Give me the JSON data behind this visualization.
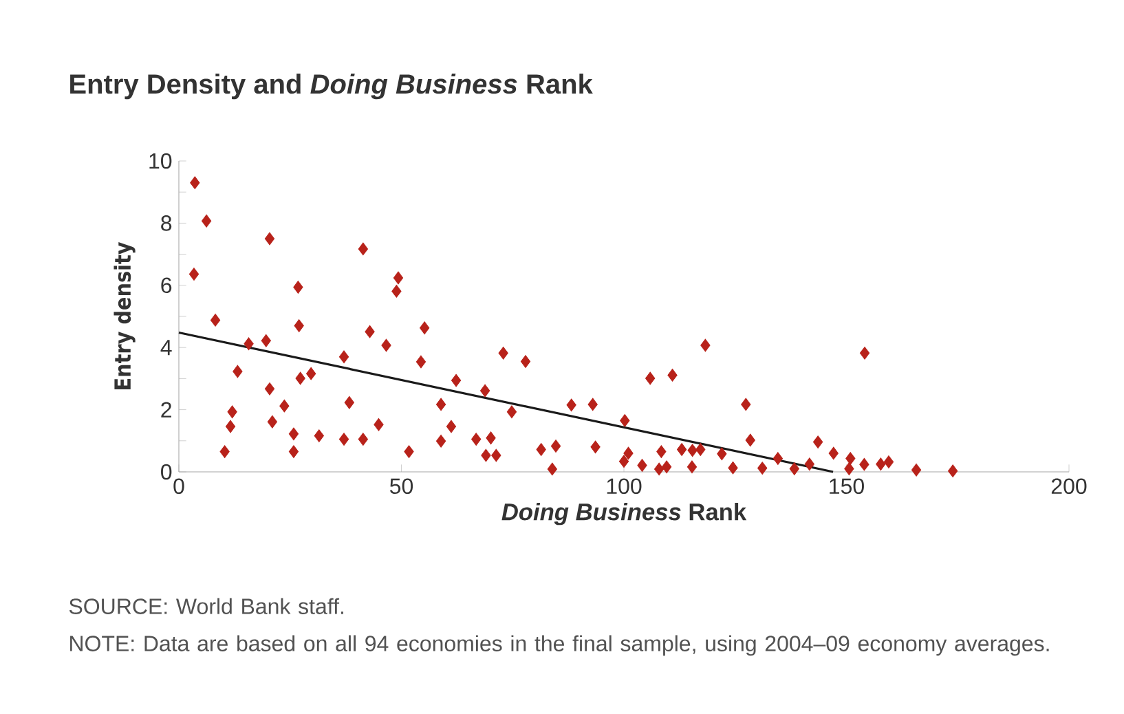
{
  "chart_data": {
    "type": "scatter",
    "title": "Entry Density and *Doing Business* Rank",
    "xlabel": "*Doing Business* Rank",
    "ylabel": "Entry density",
    "xlim": [
      0,
      200
    ],
    "ylim": [
      0,
      10
    ],
    "xticks": [
      0,
      50,
      100,
      150,
      200
    ],
    "yticks": [
      0,
      {
        "value": 1,
        "label": null
      },
      2,
      {
        "value": 3,
        "label": null
      },
      4,
      {
        "value": 5,
        "label": null
      },
      6,
      {
        "value": 7,
        "label": null
      },
      8,
      {
        "value": 9,
        "label": null
      },
      10
    ],
    "series": [
      {
        "marker": "diamond",
        "color": "#b8221a",
        "x": [
          3.6,
          6.2,
          20.4,
          41.4,
          3.4,
          49.3,
          48.9,
          26.8,
          8.2,
          27.0,
          55.2,
          42.9,
          15.7,
          19.6,
          46.6,
          37.1,
          54.4,
          13.2,
          29.7,
          27.3,
          62.3,
          20.4,
          12.0,
          23.7,
          38.3,
          58.9,
          11.6,
          21.0,
          44.9,
          61.2,
          25.8,
          31.5,
          37.1,
          41.4,
          58.9,
          66.8,
          10.3,
          25.8,
          51.7,
          72.9,
          77.9,
          68.8,
          74.8,
          70.1,
          69.0,
          71.3,
          88.2,
          93.0,
          105.9,
          110.9,
          118.3,
          100.2,
          81.4,
          84.7,
          83.9,
          93.6,
          101.0,
          100.0,
          104.1,
          108.4,
          107.9,
          109.6,
          113.0,
          115.4,
          117.2,
          115.3,
          122.0,
          127.4,
          128.4,
          124.5,
          131.1,
          134.6,
          154.1,
          143.6,
          147.1,
          138.3,
          141.7,
          150.9,
          150.6,
          154.0,
          157.7,
          159.5,
          165.7,
          173.9
        ],
        "values": [
          9.3,
          8.07,
          7.5,
          7.17,
          6.36,
          6.24,
          5.81,
          5.94,
          4.88,
          4.7,
          4.63,
          4.51,
          4.12,
          4.22,
          4.07,
          3.7,
          3.54,
          3.23,
          3.16,
          3.01,
          2.94,
          2.67,
          1.93,
          2.12,
          2.23,
          2.17,
          1.46,
          1.61,
          1.52,
          1.46,
          1.22,
          1.16,
          1.05,
          1.05,
          0.99,
          1.05,
          0.65,
          0.65,
          0.65,
          3.82,
          3.55,
          2.61,
          1.93,
          1.09,
          0.53,
          0.53,
          2.15,
          2.17,
          3.01,
          3.11,
          4.07,
          1.65,
          0.72,
          0.83,
          0.09,
          0.8,
          0.6,
          0.34,
          0.21,
          0.65,
          0.09,
          0.16,
          0.72,
          0.69,
          0.72,
          0.16,
          0.58,
          2.17,
          1.02,
          0.13,
          0.12,
          0.43,
          3.82,
          0.96,
          0.6,
          0.1,
          0.25,
          0.43,
          0.1,
          0.24,
          0.25,
          0.32,
          0.06,
          0.03
        ]
      },
      {
        "type": "line",
        "color": "#1a1a1a",
        "x": [
          0,
          147
        ],
        "values": [
          4.48,
          0
        ]
      }
    ],
    "annotations": [
      "SOURCE: World Bank staff.",
      "NOTE: Data are based on all 94 economies in the final sample, using 2004–09 economy averages."
    ]
  }
}
